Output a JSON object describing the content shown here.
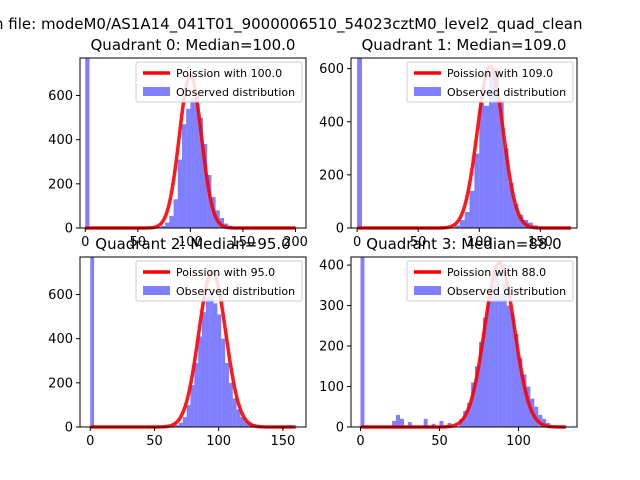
{
  "figure": {
    "suptitle": "n file: modeM0/AS1A14_041T01_9000006510_54023cztM0_level2_quad_clean"
  },
  "colors": {
    "histogram": "#0000ff",
    "poisson": "#ff0000",
    "axis": "#000000",
    "background": "#ffffff"
  },
  "chart_data": [
    {
      "type": "bar",
      "title": "Quadrant 0: Median=100.0",
      "xlim": [
        -5,
        210
      ],
      "ylim": [
        0,
        770
      ],
      "xticks": [
        0,
        50,
        100,
        150,
        200
      ],
      "yticks": [
        0,
        200,
        400,
        600
      ],
      "legend": {
        "location": "top-right",
        "entries": [
          "Poission with 100.0",
          "Observed distribution"
        ]
      },
      "poisson": {
        "mean": 100.0,
        "peak": 690,
        "sigma": 10.5,
        "x_range": [
          0,
          200
        ]
      },
      "histogram": {
        "bin_width": 4,
        "bins": [
          [
            0,
            770
          ],
          [
            68,
            5
          ],
          [
            72,
            10
          ],
          [
            76,
            25
          ],
          [
            80,
            55
          ],
          [
            84,
            130
          ],
          [
            88,
            310
          ],
          [
            92,
            470
          ],
          [
            96,
            540
          ],
          [
            100,
            590
          ],
          [
            104,
            600
          ],
          [
            108,
            500
          ],
          [
            112,
            380
          ],
          [
            116,
            240
          ],
          [
            120,
            140
          ],
          [
            124,
            80
          ],
          [
            128,
            45
          ],
          [
            132,
            20
          ],
          [
            136,
            10
          ],
          [
            140,
            5
          ]
        ]
      }
    },
    {
      "type": "bar",
      "title": "Quadrant 1: Median=109.0",
      "xlim": [
        -5,
        180
      ],
      "ylim": [
        0,
        640
      ],
      "xticks": [
        0,
        50,
        100,
        150
      ],
      "yticks": [
        0,
        200,
        400,
        600
      ],
      "legend": {
        "location": "top-right",
        "entries": [
          "Poission with 109.0",
          "Observed distribution"
        ]
      },
      "poisson": {
        "mean": 109.0,
        "peak": 610,
        "sigma": 10.5,
        "x_range": [
          0,
          175
        ]
      },
      "histogram": {
        "bin_width": 4,
        "bins": [
          [
            0,
            640
          ],
          [
            80,
            10
          ],
          [
            84,
            30
          ],
          [
            88,
            60
          ],
          [
            92,
            140
          ],
          [
            96,
            280
          ],
          [
            100,
            470
          ],
          [
            104,
            460
          ],
          [
            108,
            590
          ],
          [
            112,
            600
          ],
          [
            116,
            480
          ],
          [
            120,
            300
          ],
          [
            124,
            170
          ],
          [
            128,
            90
          ],
          [
            132,
            50
          ],
          [
            136,
            30
          ],
          [
            140,
            20
          ],
          [
            144,
            10
          ]
        ]
      }
    },
    {
      "type": "bar",
      "title": "Quadrant 2: Median=95.0",
      "xlim": [
        -8,
        168
      ],
      "ylim": [
        0,
        770
      ],
      "xticks": [
        0,
        50,
        100,
        150
      ],
      "yticks": [
        0,
        200,
        400,
        600
      ],
      "legend": {
        "location": "top-right",
        "entries": [
          "Poission with 95.0",
          "Observed distribution"
        ]
      },
      "poisson": {
        "mean": 95.0,
        "peak": 705,
        "sigma": 10.5,
        "x_range": [
          0,
          160
        ]
      },
      "histogram": {
        "bin_width": 3,
        "bins": [
          [
            0,
            770
          ],
          [
            63,
            5
          ],
          [
            66,
            10
          ],
          [
            69,
            20
          ],
          [
            72,
            45
          ],
          [
            75,
            100
          ],
          [
            78,
            190
          ],
          [
            81,
            290
          ],
          [
            84,
            410
          ],
          [
            87,
            520
          ],
          [
            90,
            590
          ],
          [
            93,
            610
          ],
          [
            96,
            560
          ],
          [
            99,
            510
          ],
          [
            102,
            400
          ],
          [
            105,
            290
          ],
          [
            108,
            200
          ],
          [
            111,
            130
          ],
          [
            114,
            80
          ],
          [
            117,
            45
          ],
          [
            120,
            25
          ],
          [
            123,
            15
          ],
          [
            126,
            10
          ],
          [
            129,
            5
          ]
        ]
      }
    },
    {
      "type": "bar",
      "title": "Quadrant 3: Median=88.0",
      "xlim": [
        -6,
        137
      ],
      "ylim": [
        0,
        420
      ],
      "xticks": [
        0,
        50,
        100
      ],
      "yticks": [
        0,
        100,
        200,
        300,
        400
      ],
      "legend": {
        "location": "top-right",
        "entries": [
          "Poission with 88.0",
          "Observed distribution"
        ]
      },
      "poisson": {
        "mean": 88.0,
        "peak": 405,
        "sigma": 9.4,
        "x_range": [
          0,
          130
        ]
      },
      "histogram": {
        "bin_width": 2.5,
        "bins": [
          [
            0,
            420
          ],
          [
            20,
            15
          ],
          [
            22.5,
            30
          ],
          [
            25,
            20
          ],
          [
            30,
            12
          ],
          [
            40,
            20
          ],
          [
            45,
            8
          ],
          [
            50,
            15
          ],
          [
            55,
            10
          ],
          [
            62.5,
            20
          ],
          [
            65,
            40
          ],
          [
            67.5,
            60
          ],
          [
            70,
            110
          ],
          [
            72.5,
            150
          ],
          [
            75,
            210
          ],
          [
            77.5,
            270
          ],
          [
            80,
            320
          ],
          [
            82.5,
            350
          ],
          [
            85,
            380
          ],
          [
            87.5,
            330
          ],
          [
            90,
            360
          ],
          [
            92.5,
            300
          ],
          [
            95,
            280
          ],
          [
            97.5,
            230
          ],
          [
            100,
            170
          ],
          [
            102.5,
            130
          ],
          [
            105,
            100
          ],
          [
            107.5,
            70
          ],
          [
            110,
            50
          ],
          [
            112.5,
            30
          ],
          [
            115,
            20
          ],
          [
            117.5,
            10
          ]
        ]
      }
    }
  ]
}
